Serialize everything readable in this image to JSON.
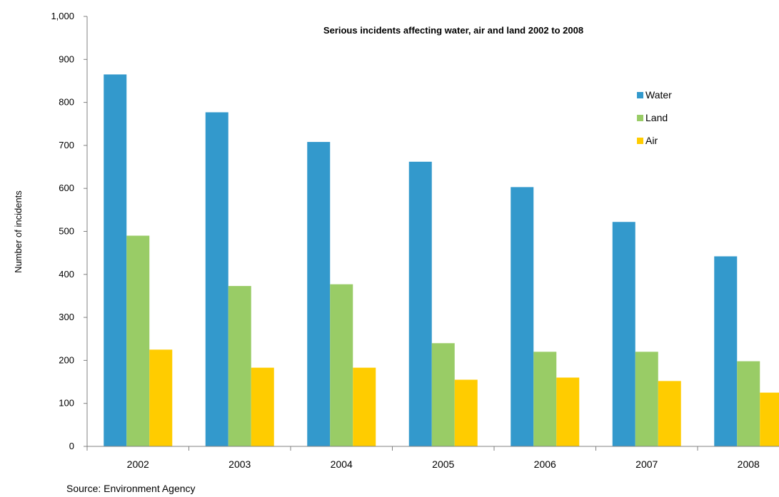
{
  "chart_data": {
    "type": "bar",
    "title": "Serious incidents affecting water, air and land 2002 to 2008",
    "xlabel": "",
    "ylabel": "Number of incidents",
    "ylim": [
      0,
      1000
    ],
    "yticks": [
      "0",
      "100",
      "200",
      "300",
      "400",
      "500",
      "600",
      "700",
      "800",
      "900",
      "1,000"
    ],
    "categories": [
      "2002",
      "2003",
      "2004",
      "2005",
      "2006",
      "2007",
      "2008"
    ],
    "series": [
      {
        "name": "Water",
        "color": "#3399cc",
        "values": [
          865,
          777,
          708,
          662,
          603,
          522,
          442
        ]
      },
      {
        "name": "Land",
        "color": "#99cc66",
        "values": [
          490,
          373,
          377,
          240,
          220,
          220,
          198
        ]
      },
      {
        "name": "Air",
        "color": "#ffcc00",
        "values": [
          225,
          183,
          183,
          155,
          160,
          152,
          125
        ]
      }
    ],
    "legend_position": "top-right",
    "grid": false,
    "source": "Source:  Environment Agency"
  }
}
